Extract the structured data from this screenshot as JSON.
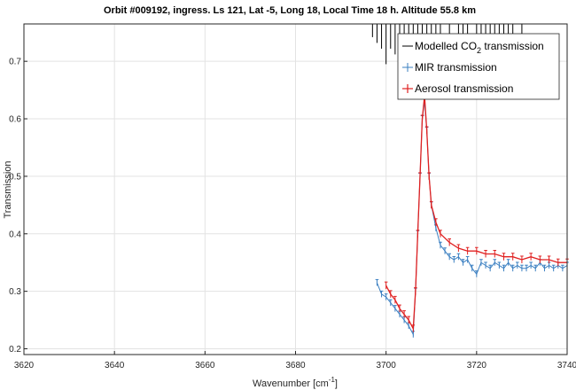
{
  "chart_data": {
    "type": "line",
    "title": "Orbit #009192, ingress. Ls 121, Lat -5, Long 18, Local Time 18 h. Altitude 55.8 km",
    "xlabel": "Wavenumber [cm",
    "xlabel_sup": "-1",
    "xlabel_close": "]",
    "ylabel": "Transmission",
    "xlim": [
      3620,
      3740
    ],
    "ylim": [
      0.19,
      0.765
    ],
    "xticks": [
      3620,
      3640,
      3660,
      3680,
      3700,
      3720,
      3740
    ],
    "yticks": [
      0.2,
      0.3,
      0.4,
      0.5,
      0.6,
      0.7
    ],
    "xtick_labels": [
      "3620",
      "3640",
      "3660",
      "3680",
      "3700",
      "3720",
      "3740"
    ],
    "ytick_labels": [
      "0.2",
      "0.3",
      "0.4",
      "0.5",
      "0.6",
      "0.7"
    ],
    "grid": true,
    "legend_position": "top-right",
    "legend": [
      {
        "label": "Modelled CO",
        "sub": "2",
        "label_rest": " transmission",
        "color": "#000000"
      },
      {
        "label": "MIR transmission",
        "color": "#3a7fc1"
      },
      {
        "label": "Aerosol transmission",
        "color": "#e02020"
      }
    ],
    "series": [
      {
        "name": "MIR transmission",
        "color": "#3a7fc1",
        "x": [
          3698,
          3699,
          3700,
          3701,
          3702,
          3703,
          3704,
          3705,
          3706,
          3706.5,
          3707,
          3707.5,
          3708,
          3708.5,
          3709,
          3709.5,
          3710,
          3711,
          3712,
          3713,
          3714,
          3715,
          3716,
          3717,
          3718,
          3719,
          3720,
          3721,
          3722,
          3723,
          3724,
          3725,
          3726,
          3727,
          3728,
          3729,
          3730,
          3731,
          3732,
          3733,
          3734,
          3735,
          3736,
          3737,
          3738,
          3739,
          3740
        ],
        "y": [
          0.315,
          0.295,
          0.29,
          0.28,
          0.27,
          0.26,
          0.25,
          0.24,
          0.225,
          0.3,
          0.4,
          0.5,
          0.6,
          0.63,
          0.58,
          0.5,
          0.45,
          0.41,
          0.38,
          0.37,
          0.36,
          0.355,
          0.36,
          0.35,
          0.355,
          0.34,
          0.33,
          0.35,
          0.345,
          0.34,
          0.35,
          0.345,
          0.34,
          0.35,
          0.34,
          0.345,
          0.34,
          0.34,
          0.345,
          0.34,
          0.35,
          0.34,
          0.345,
          0.34,
          0.345,
          0.34,
          0.345
        ]
      },
      {
        "name": "Aerosol transmission",
        "color": "#e02020",
        "x": [
          3700,
          3701,
          3702,
          3703,
          3704,
          3705,
          3706,
          3706.5,
          3707,
          3707.5,
          3708,
          3708.5,
          3709,
          3709.5,
          3710,
          3711,
          3712,
          3714,
          3716,
          3718,
          3720,
          3722,
          3724,
          3726,
          3728,
          3730,
          3732,
          3734,
          3736,
          3738,
          3740
        ],
        "y": [
          0.31,
          0.295,
          0.285,
          0.27,
          0.26,
          0.25,
          0.235,
          0.3,
          0.4,
          0.5,
          0.6,
          0.64,
          0.58,
          0.5,
          0.45,
          0.42,
          0.4,
          0.385,
          0.375,
          0.37,
          0.37,
          0.365,
          0.365,
          0.36,
          0.36,
          0.355,
          0.36,
          0.355,
          0.355,
          0.35,
          0.35
        ]
      }
    ],
    "co2_lines": {
      "name": "Modelled CO2 transmission",
      "color": "#000000",
      "x": [
        3697,
        3698,
        3699,
        3700,
        3701,
        3702,
        3703,
        3704,
        3705,
        3706,
        3707,
        3708,
        3709,
        3710,
        3711,
        3712,
        3714,
        3716,
        3717,
        3718,
        3720,
        3721,
        3722,
        3723,
        3724,
        3725,
        3726,
        3727,
        3728,
        3730
      ],
      "y_bottom": [
        0.742,
        0.732,
        0.722,
        0.695,
        0.722,
        0.712,
        0.705,
        0.712,
        0.718,
        0.722,
        0.725,
        0.705,
        0.718,
        0.72,
        0.722,
        0.728,
        0.735,
        0.735,
        0.738,
        0.735,
        0.732,
        0.728,
        0.735,
        0.73,
        0.728,
        0.735,
        0.74,
        0.735,
        0.74,
        0.742
      ]
    }
  }
}
